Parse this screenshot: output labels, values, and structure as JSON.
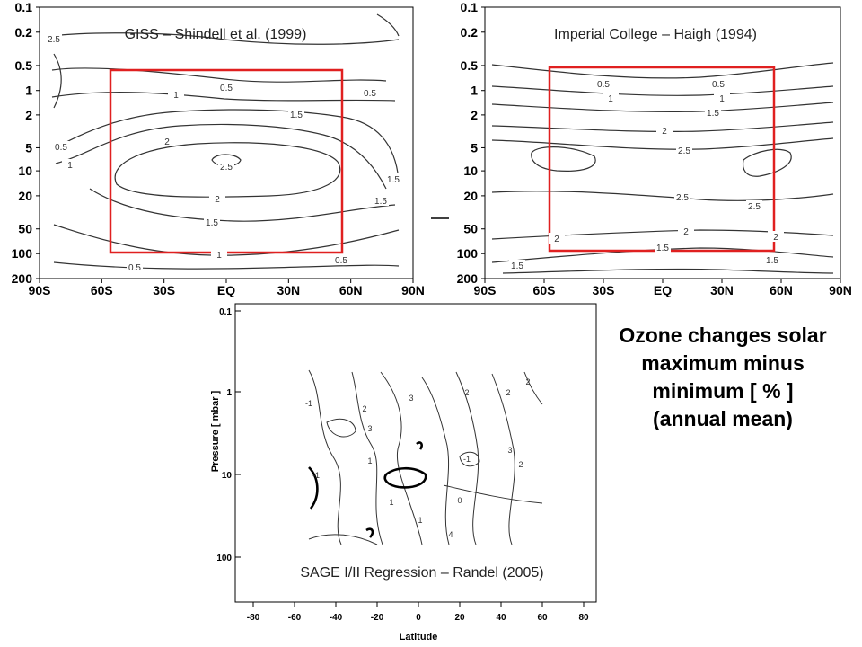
{
  "headline": {
    "line1": "Ozone changes solar",
    "line2": "maximum minus",
    "line3": "minimum [ % ]",
    "line4": "(annual mean)"
  },
  "chart_data": [
    {
      "type": "contour",
      "panel_label": "GISS – Shindell et al. (1999)",
      "x_tick_labels": [
        "90S",
        "60S",
        "30S",
        "EQ",
        "30N",
        "60N",
        "90N"
      ],
      "y_tick_labels": [
        "0.1",
        "0.2",
        "0.5",
        "1",
        "2",
        "5",
        "10",
        "20",
        "50",
        "100",
        "200"
      ],
      "xlim": [
        -90,
        90
      ],
      "ylim": [
        200,
        0.1
      ],
      "y_scale": "log",
      "contour_levels": [
        "0.5",
        "1",
        "1.5",
        "2",
        "2.5"
      ],
      "highlight_box": {
        "lat": [
          -60,
          58
        ],
        "pressure": [
          100,
          0.45
        ],
        "color": "#e02020"
      }
    },
    {
      "type": "contour",
      "panel_label": "Imperial College – Haigh (1994)",
      "x_tick_labels": [
        "90S",
        "60S",
        "30S",
        "EQ",
        "30N",
        "60N",
        "90N"
      ],
      "y_tick_labels": [
        "0.1",
        "0.2",
        "0.5",
        "1",
        "2",
        "5",
        "10",
        "20",
        "50",
        "100",
        "200"
      ],
      "xlim": [
        -90,
        90
      ],
      "ylim": [
        200,
        0.1
      ],
      "y_scale": "log",
      "contour_levels": [
        "0.5",
        "1",
        "1.5",
        "2",
        "2.5"
      ],
      "highlight_box": {
        "lat": [
          -57,
          57
        ],
        "pressure": [
          100,
          0.45
        ],
        "color": "#e02020"
      }
    },
    {
      "type": "contour",
      "panel_label": "SAGE I/II Regression – Randel (2005)",
      "x_tick_labels": [
        "-80",
        "-60",
        "-40",
        "-20",
        "0",
        "20",
        "40",
        "60",
        "80"
      ],
      "y_tick_labels": [
        "0.1",
        "1",
        "10",
        "100"
      ],
      "xlabel": "Latitude",
      "ylabel": "Pressure [ mbar ]",
      "xlim": [
        -90,
        90
      ],
      "ylim": [
        200,
        0.1
      ],
      "y_scale": "log",
      "contour_levels": [
        "-1",
        "0",
        "1",
        "2",
        "3",
        "4"
      ]
    }
  ]
}
